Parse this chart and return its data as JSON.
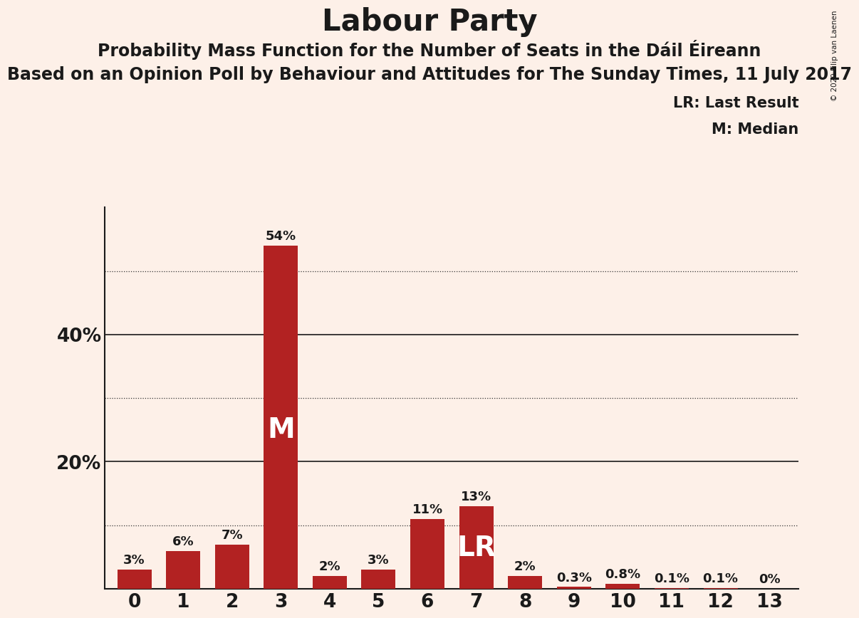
{
  "title": "Labour Party",
  "subtitle1": "Probability Mass Function for the Number of Seats in the Dáil Éireann",
  "subtitle2": "Based on an Opinion Poll by Behaviour and Attitudes for The Sunday Times, 11 July 2017",
  "copyright": "© 2020 Filip van Laenen",
  "categories": [
    0,
    1,
    2,
    3,
    4,
    5,
    6,
    7,
    8,
    9,
    10,
    11,
    12,
    13
  ],
  "values": [
    3,
    6,
    7,
    54,
    2,
    3,
    11,
    13,
    2,
    0.3,
    0.8,
    0.1,
    0.1,
    0
  ],
  "bar_labels": [
    "3%",
    "6%",
    "7%",
    "54%",
    "2%",
    "3%",
    "11%",
    "13%",
    "2%",
    "0.3%",
    "0.8%",
    "0.1%",
    "0.1%",
    "0%"
  ],
  "bar_color": "#b22222",
  "background_color": "#fdf0e8",
  "text_color": "#1a1a1a",
  "median_bar": 3,
  "lr_bar": 7,
  "median_label": "M",
  "lr_label": "LR",
  "legend_lr": "LR: Last Result",
  "legend_m": "M: Median",
  "ylim": [
    0,
    60
  ],
  "solid_gridlines": [
    20,
    40
  ],
  "dotted_gridlines": [
    10,
    30,
    50
  ],
  "title_fontsize": 30,
  "subtitle1_fontsize": 17,
  "subtitle2_fontsize": 17,
  "bar_label_fontsize": 13,
  "axis_label_fontsize": 19,
  "inbar_label_fontsize": 28,
  "legend_fontsize": 15
}
